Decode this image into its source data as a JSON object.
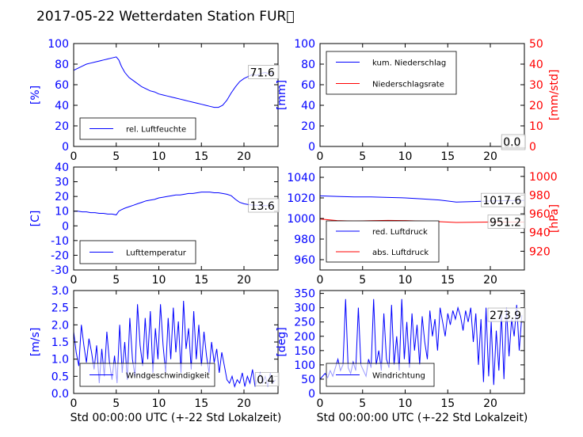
{
  "title": "2017-05-22 Wetterdaten Station FUR\u0000",
  "xlabel": "Std 00:00:00 UTC (+-22 Std Lokalzeit)",
  "colors": {
    "left_axis": "#0000ff",
    "right_axis": "#ff0000",
    "series1": "#0000ff",
    "series2": "#ff0000"
  },
  "chart_data": [
    {
      "type": "line",
      "ylabel": "[%]",
      "xlim": [
        0,
        24
      ],
      "xticks": [
        0,
        5,
        10,
        15,
        20
      ],
      "ylim": [
        0,
        100
      ],
      "yticks": [
        0,
        20,
        40,
        60,
        80,
        100
      ],
      "last_value": "71.6",
      "legend_position": "lower-left",
      "series": [
        {
          "name": "rel. Luftfeuchte",
          "axis": "left",
          "x": [
            0,
            0.5,
            1,
            1.5,
            2,
            2.5,
            3,
            3.5,
            4,
            4.5,
            5,
            5.3,
            5.6,
            6,
            6.5,
            7,
            7.5,
            8,
            8.5,
            9,
            9.5,
            10,
            10.5,
            11,
            11.5,
            12,
            12.5,
            13,
            13.5,
            14,
            14.5,
            15,
            15.5,
            16,
            16.5,
            17,
            17.5,
            18,
            18.5,
            19,
            19.5,
            20,
            20.5,
            21,
            21.5,
            22,
            22.5,
            23,
            23.5
          ],
          "y": [
            74,
            76,
            78,
            80,
            81,
            82,
            83,
            84,
            85,
            86,
            87,
            84,
            78,
            72,
            67,
            64,
            61,
            58,
            56,
            54,
            53,
            51,
            50,
            49,
            48,
            47,
            46,
            45,
            44,
            43,
            42,
            41,
            40,
            39,
            38,
            38,
            40,
            45,
            52,
            58,
            63,
            66,
            68,
            70,
            69,
            71,
            72,
            70,
            72
          ]
        }
      ]
    },
    {
      "type": "line",
      "ylabel": "[mm]",
      "ylabel_right": "[mm/std]",
      "xlim": [
        0,
        24
      ],
      "xticks": [
        0,
        5,
        10,
        15,
        20
      ],
      "ylim": [
        0,
        100
      ],
      "yticks": [
        0,
        20,
        40,
        60,
        80,
        100
      ],
      "ylim_right": [
        0,
        50
      ],
      "yticks_right": [
        0,
        10,
        20,
        30,
        40,
        50
      ],
      "last_value": "0.0",
      "last_value_2": "0.0",
      "legend_position": "upper-left",
      "series": [
        {
          "name": "kum. Niederschlag",
          "axis": "left",
          "x": [
            0,
            24
          ],
          "y": [
            0,
            0
          ]
        },
        {
          "name": "Niederschlagsrate",
          "axis": "right",
          "x": [
            0,
            24
          ],
          "y": [
            0,
            0
          ]
        }
      ]
    },
    {
      "type": "line",
      "ylabel": "[C]",
      "xlim": [
        0,
        24
      ],
      "xticks": [
        0,
        5,
        10,
        15,
        20
      ],
      "ylim": [
        -30,
        40
      ],
      "yticks": [
        -30,
        -20,
        -10,
        0,
        10,
        20,
        30,
        40
      ],
      "last_value": "13.6",
      "legend_position": "lower-left",
      "series": [
        {
          "name": "Lufttemperatur",
          "axis": "left",
          "x": [
            0,
            0.5,
            1,
            1.5,
            2,
            2.5,
            3,
            3.5,
            4,
            4.5,
            5,
            5.3,
            5.6,
            6,
            6.5,
            7,
            7.5,
            8,
            8.5,
            9,
            9.5,
            10,
            10.5,
            11,
            11.5,
            12,
            12.5,
            13,
            13.5,
            14,
            14.5,
            15,
            15.5,
            16,
            16.5,
            17,
            17.5,
            18,
            18.5,
            19,
            19.5,
            20,
            20.5,
            21,
            21.5,
            22,
            22.5,
            23,
            23.5
          ],
          "y": [
            10,
            10,
            9.5,
            9.5,
            9,
            9,
            8.5,
            8.5,
            8,
            8,
            7.5,
            10,
            11,
            12,
            13,
            14,
            15,
            16,
            17,
            17.5,
            18,
            19,
            19.5,
            20,
            20.5,
            21,
            21,
            21.5,
            22,
            22,
            22.5,
            23,
            23,
            23,
            22.5,
            22.5,
            22,
            21.5,
            20.5,
            18,
            16,
            15,
            14.5,
            14,
            14,
            13.8,
            13.7,
            13.6,
            13.6
          ]
        }
      ]
    },
    {
      "type": "line",
      "ylabel": "",
      "ylabel_right": "[hPa]",
      "xlim": [
        0,
        24
      ],
      "xticks": [
        0,
        5,
        10,
        15,
        20
      ],
      "ylim": [
        950,
        1050
      ],
      "yticks": [
        960,
        980,
        1000,
        1020,
        1040
      ],
      "ylim_right": [
        900,
        1010
      ],
      "yticks_right": [
        920,
        940,
        960,
        980,
        1000
      ],
      "last_value": "1017.6",
      "last_value_2": "951.2",
      "legend_position": "lower-left",
      "series": [
        {
          "name": "red. Luftdruck",
          "axis": "left",
          "x": [
            0,
            2,
            4,
            6,
            8,
            10,
            12,
            14,
            16,
            18,
            20,
            22,
            24
          ],
          "y": [
            1022,
            1021.5,
            1021,
            1021,
            1020.5,
            1020,
            1019,
            1018,
            1016,
            1016.5,
            1017,
            1017.4,
            1017.6
          ]
        },
        {
          "name": "abs. Luftdruck",
          "axis": "right",
          "x": [
            0,
            2,
            4,
            6,
            8,
            10,
            12,
            14,
            16,
            18,
            20,
            22,
            24
          ],
          "y": [
            954.5,
            952.8,
            952.2,
            952.6,
            953,
            952.8,
            952.3,
            951.6,
            950.8,
            951,
            951.2,
            951.2,
            951.2
          ]
        }
      ]
    },
    {
      "type": "line",
      "ylabel": "[m/s]",
      "xlim": [
        0,
        24
      ],
      "xticks": [
        0,
        5,
        10,
        15,
        20
      ],
      "ylim": [
        0,
        3
      ],
      "yticks": [
        0.0,
        0.5,
        1.0,
        1.5,
        2.0,
        2.5,
        3.0
      ],
      "last_value": "0.4",
      "legend_position": "lower-left",
      "series": [
        {
          "name": "Windgeschwindigkeit",
          "axis": "left",
          "x": [
            0,
            0.3,
            0.6,
            0.9,
            1.2,
            1.5,
            1.8,
            2.1,
            2.4,
            2.7,
            3.0,
            3.3,
            3.6,
            3.9,
            4.2,
            4.5,
            4.8,
            5.1,
            5.4,
            5.7,
            6.0,
            6.3,
            6.6,
            6.9,
            7.2,
            7.5,
            7.8,
            8.1,
            8.4,
            8.7,
            9.0,
            9.3,
            9.6,
            9.9,
            10.2,
            10.5,
            10.8,
            11.1,
            11.4,
            11.7,
            12.0,
            12.3,
            12.6,
            12.9,
            13.2,
            13.5,
            13.8,
            14.1,
            14.4,
            14.7,
            15.0,
            15.3,
            15.6,
            15.9,
            16.2,
            16.5,
            16.8,
            17.1,
            17.4,
            17.7,
            18.0,
            18.3,
            18.6,
            18.9,
            19.2,
            19.5,
            19.8,
            20.1,
            20.4,
            20.7,
            21.0,
            21.3,
            21.6,
            21.9,
            22.2,
            22.5,
            22.8,
            23.1,
            23.4,
            23.7
          ],
          "y": [
            1.8,
            1.2,
            0.8,
            2.0,
            1.4,
            0.9,
            1.6,
            1.2,
            0.7,
            1.4,
            0.3,
            1.3,
            0.5,
            1.8,
            0.9,
            0.4,
            1.1,
            0.3,
            2.0,
            0.6,
            1.5,
            0.4,
            2.2,
            1.0,
            0.5,
            2.6,
            1.4,
            0.8,
            2.2,
            1.0,
            2.4,
            0.6,
            1.9,
            1.0,
            2.6,
            1.4,
            0.6,
            2.2,
            1.0,
            2.5,
            1.2,
            2.1,
            0.6,
            2.7,
            1.3,
            1.9,
            0.7,
            2.4,
            1.0,
            2.0,
            0.8,
            1.8,
            1.1,
            0.6,
            1.5,
            0.9,
            1.3,
            0.6,
            1.2,
            0.8,
            0.4,
            0.3,
            0.5,
            0.2,
            0.4,
            0.3,
            0.6,
            0.2,
            0.5,
            0.3,
            0.7,
            0.2,
            0.4,
            0.6,
            0.3,
            0.5,
            0.2,
            0.6,
            0.3,
            0.4
          ]
        }
      ]
    },
    {
      "type": "line",
      "ylabel": "[deg]",
      "xlim": [
        0,
        24
      ],
      "xticks": [
        0,
        5,
        10,
        15,
        20
      ],
      "ylim": [
        0,
        360
      ],
      "yticks": [
        0,
        50,
        100,
        150,
        200,
        250,
        300,
        350
      ],
      "last_value": "273.9",
      "legend_position": "lower-left",
      "series": [
        {
          "name": "Windrichtung",
          "axis": "left",
          "x": [
            0,
            0.3,
            0.6,
            0.9,
            1.2,
            1.5,
            1.8,
            2.1,
            2.4,
            2.7,
            3.0,
            3.3,
            3.6,
            3.9,
            4.2,
            4.5,
            4.8,
            5.1,
            5.4,
            5.7,
            6.0,
            6.3,
            6.6,
            6.9,
            7.2,
            7.5,
            7.8,
            8.1,
            8.4,
            8.7,
            9.0,
            9.3,
            9.6,
            9.9,
            10.2,
            10.5,
            10.8,
            11.1,
            11.4,
            11.7,
            12.0,
            12.3,
            12.6,
            12.9,
            13.2,
            13.5,
            13.8,
            14.1,
            14.4,
            14.7,
            15.0,
            15.3,
            15.6,
            15.9,
            16.2,
            16.5,
            16.8,
            17.1,
            17.4,
            17.7,
            18.0,
            18.3,
            18.6,
            18.9,
            19.2,
            19.5,
            19.8,
            20.1,
            20.4,
            20.7,
            21.0,
            21.3,
            21.6,
            21.9,
            22.2,
            22.5,
            22.8,
            23.1,
            23.4,
            23.7
          ],
          "y": [
            50,
            60,
            70,
            55,
            80,
            60,
            90,
            120,
            80,
            100,
            330,
            90,
            70,
            110,
            80,
            300,
            100,
            80,
            60,
            120,
            90,
            330,
            100,
            150,
            80,
            280,
            120,
            90,
            310,
            100,
            200,
            80,
            330,
            120,
            250,
            90,
            280,
            150,
            240,
            100,
            270,
            180,
            120,
            290,
            200,
            260,
            150,
            300,
            250,
            200,
            280,
            240,
            290,
            260,
            300,
            270,
            220,
            290,
            250,
            300,
            180,
            280,
            100,
            260,
            40,
            300,
            60,
            250,
            30,
            220,
            80,
            280,
            50,
            300,
            130,
            260,
            200,
            310,
            150,
            274
          ]
        }
      ]
    }
  ]
}
